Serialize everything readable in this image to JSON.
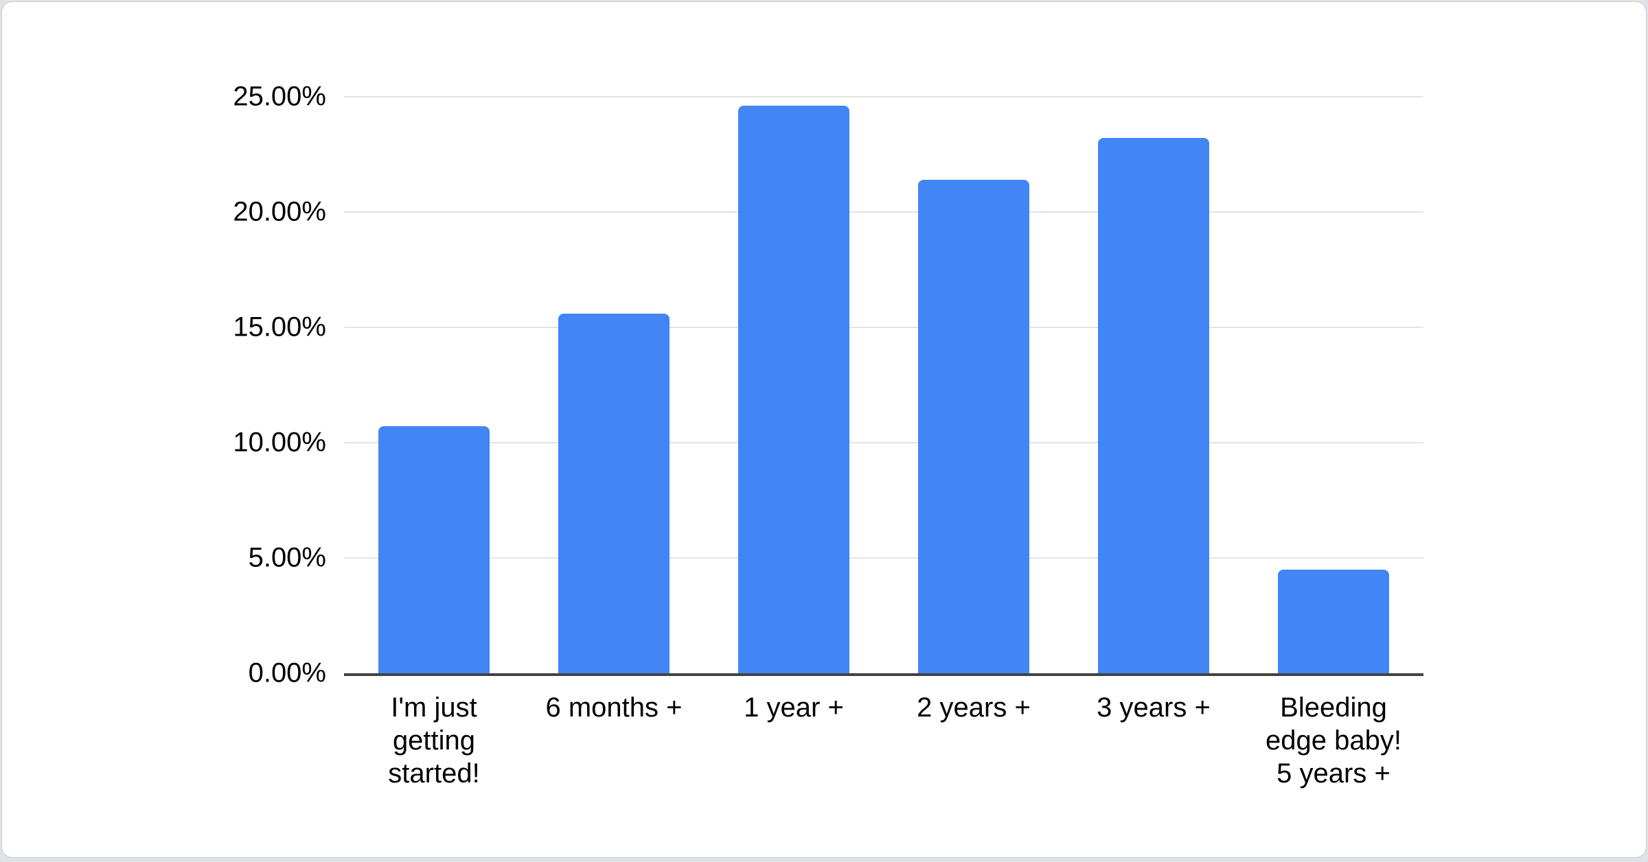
{
  "page": {
    "background_color": "#dfe2e6"
  },
  "card": {
    "background_color": "#ffffff",
    "border_color": "#c9ccd1"
  },
  "chart_data": {
    "type": "bar",
    "title": "",
    "xlabel": "",
    "ylabel": "",
    "categories": [
      "I'm just getting started!",
      "6 months +",
      "1 year +",
      "2 years +",
      "3 years +",
      "Bleeding edge baby! 5 years +"
    ],
    "values": [
      10.7,
      15.6,
      24.6,
      21.4,
      23.2,
      4.5
    ],
    "value_unit": "%",
    "ylim": [
      0,
      25
    ],
    "y_tick_interval": 5,
    "y_tick_labels": [
      "0.00%",
      "5.00%",
      "10.00%",
      "15.00%",
      "20.00%",
      "25.00%"
    ],
    "grid": true,
    "legend": false,
    "bar_color": "#4285f4",
    "gridline_color": "#e3e3e3",
    "axis_line_color": "#424242",
    "label_color": "#000000"
  }
}
